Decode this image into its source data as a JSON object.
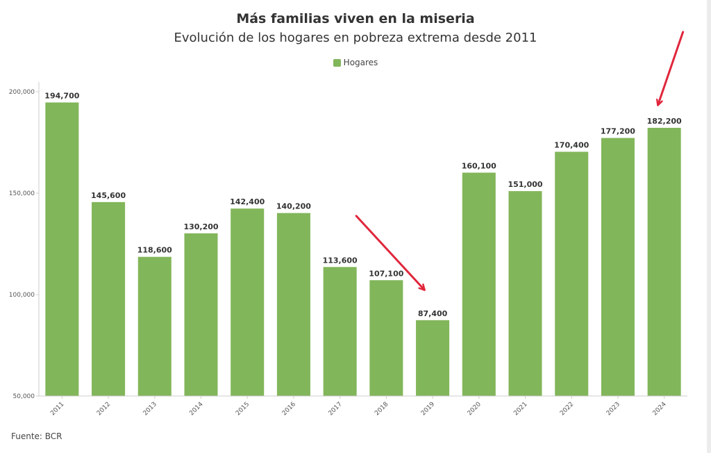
{
  "title": "Más familias viven en la miseria",
  "subtitle": "Evolución de los hogares en pobreza extrema desde 2011",
  "legend": {
    "label": "Hogares"
  },
  "source": "Fuente: BCR",
  "colors": {
    "bar": "#82b65a",
    "arrow": "#e0263c",
    "axis": "#cccccc"
  },
  "chart_data": {
    "type": "bar",
    "title": "Más familias viven en la miseria",
    "subtitle": "Evolución de los hogares en pobreza extrema desde 2011",
    "xlabel": "",
    "ylabel": "",
    "ylim": [
      50000,
      200000
    ],
    "yticks": [
      50000,
      100000,
      150000,
      200000
    ],
    "ytick_labels": [
      "50,000",
      "100,000",
      "150,000",
      "200,000"
    ],
    "legend_position": "top-center",
    "categories": [
      "2011",
      "2012",
      "2013",
      "2014",
      "2015",
      "2016",
      "2017",
      "2018",
      "2019",
      "2020",
      "2021",
      "2022",
      "2023",
      "2024"
    ],
    "series": [
      {
        "name": "Hogares",
        "values": [
          194700,
          145600,
          118600,
          130200,
          142400,
          140200,
          113600,
          107100,
          87400,
          160100,
          151000,
          170400,
          177200,
          182200
        ],
        "labels": [
          "194,700",
          "145,600",
          "118,600",
          "130,200",
          "142,400",
          "140,200",
          "113,600",
          "107,100",
          "87,400",
          "160,100",
          "151,000",
          "170,400",
          "177,200",
          "182,200"
        ]
      }
    ],
    "annotations": [
      {
        "type": "arrow",
        "points_to": "2019"
      },
      {
        "type": "arrow",
        "points_to": "2024"
      }
    ]
  }
}
